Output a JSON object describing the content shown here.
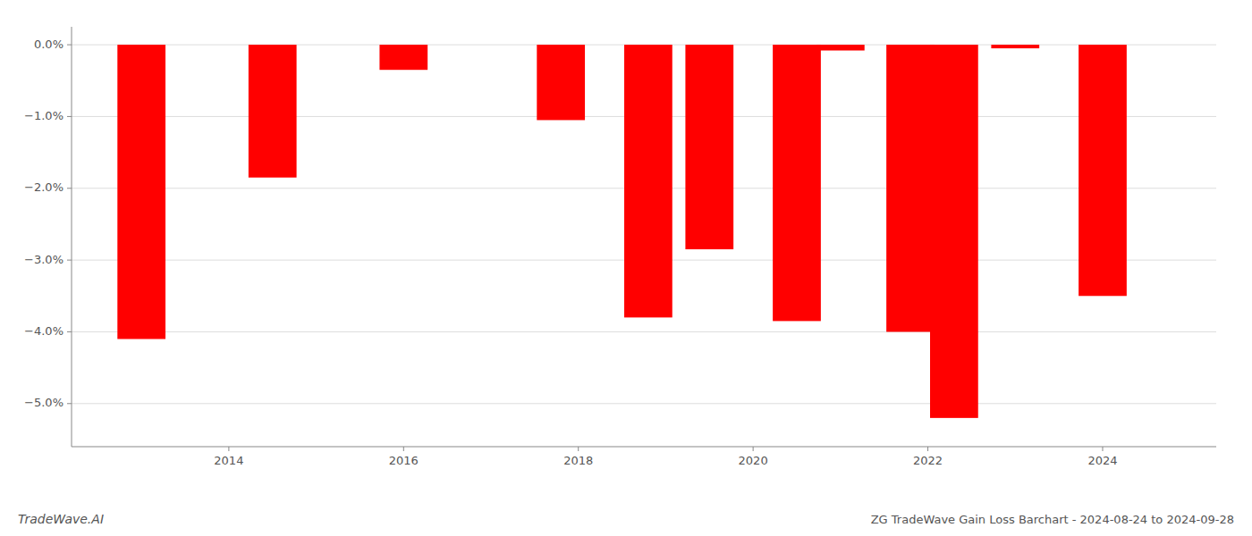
{
  "chart_data": {
    "type": "bar",
    "title": "ZG TradeWave Gain Loss Barchart - 2024-08-24 to 2024-09-28",
    "annotations": [
      "TradeWave.AI"
    ],
    "x": [
      2013.0,
      2014.5,
      2016.0,
      2017.8,
      2018.8,
      2019.5,
      2020.5,
      2021.0,
      2021.8,
      2022.3,
      2023.0,
      2024.0
    ],
    "values": [
      -4.1,
      -1.85,
      -0.35,
      -1.05,
      -3.8,
      -2.85,
      -3.85,
      -0.08,
      -4.0,
      -5.2,
      -0.05,
      -3.5
    ],
    "color": "#ff0000",
    "xlim": [
      2012.2,
      2025.3
    ],
    "xticks": [
      2014,
      2016,
      2018,
      2020,
      2022,
      2024
    ],
    "ylim": [
      -5.6,
      0.25
    ],
    "yticks": [
      {
        "value": 0.0,
        "label": "0.0%"
      },
      {
        "value": -1.0,
        "label": "−1.0%"
      },
      {
        "value": -2.0,
        "label": "−2.0%"
      },
      {
        "value": -3.0,
        "label": "−3.0%"
      },
      {
        "value": -4.0,
        "label": "−4.0%"
      },
      {
        "value": -5.0,
        "label": "−5.0%"
      }
    ],
    "grid": true
  }
}
